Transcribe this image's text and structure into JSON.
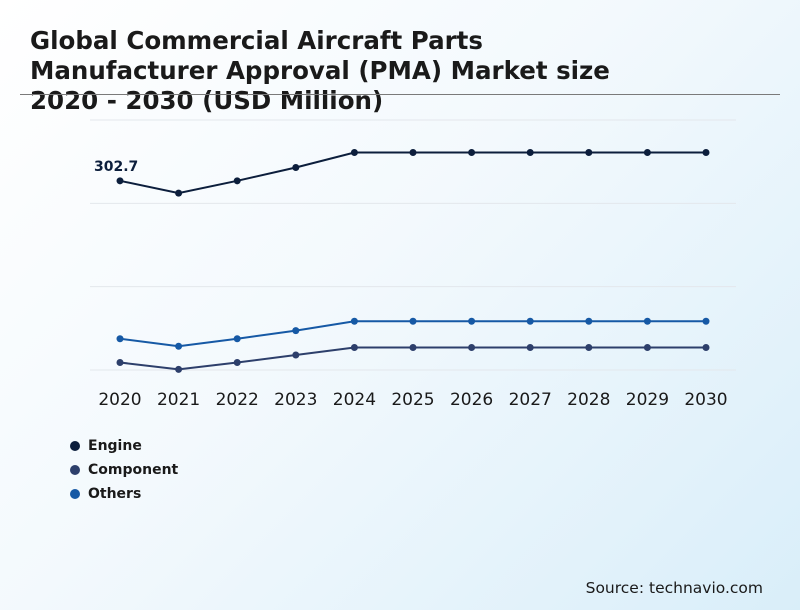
{
  "title_lines": [
    "Global Commercial Aircraft Parts",
    "Manufacturer Approval (PMA) Market size",
    "2020 - 2030 (USD Million)"
  ],
  "source": "Source: technavio.com",
  "chart_data": {
    "type": "line",
    "x": [
      "2020",
      "2021",
      "2022",
      "2023",
      "2024",
      "2025",
      "2026",
      "2027",
      "2028",
      "2029",
      "2030"
    ],
    "ylim": [
      0,
      400
    ],
    "grid": true,
    "legend_position": "bottom-left",
    "annotations": [
      {
        "series": "Engine",
        "x": "2020",
        "text": "302.7"
      }
    ],
    "series": [
      {
        "name": "Engine",
        "color": "#0c1e3c",
        "values": [
          302.7,
          283,
          302.7,
          324,
          348,
          348,
          348,
          348,
          348,
          348,
          348
        ]
      },
      {
        "name": "Component",
        "color": "#2d3f6b",
        "values": [
          12,
          1,
          12,
          24,
          36,
          36,
          36,
          36,
          36,
          36,
          36
        ]
      },
      {
        "name": "Others",
        "color": "#1659a5",
        "values": [
          50,
          38,
          50,
          63,
          78,
          78,
          78,
          78,
          78,
          78,
          78
        ]
      }
    ]
  }
}
